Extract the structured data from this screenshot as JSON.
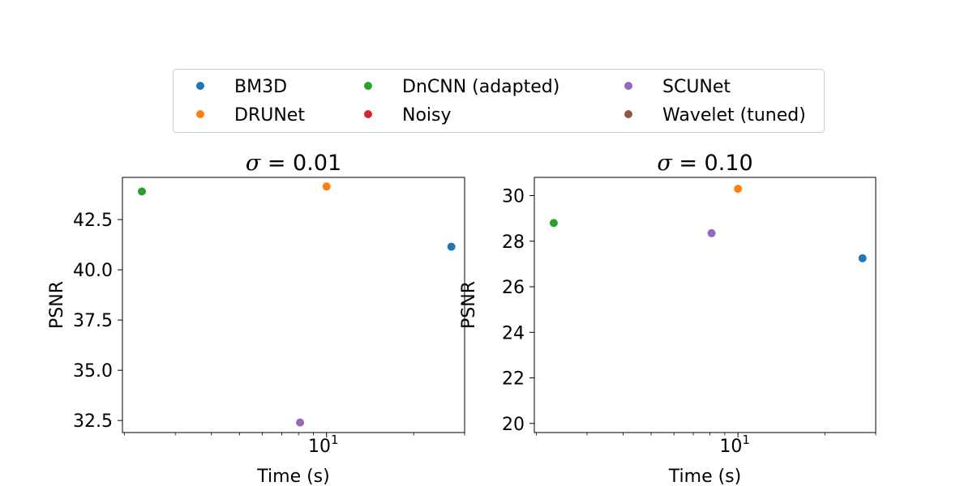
{
  "legend": {
    "placement": "top-center",
    "entries": [
      {
        "name": "BM3D",
        "color": "#1f77b4"
      },
      {
        "name": "DRUNet",
        "color": "#ff7f0e"
      },
      {
        "name": "DnCNN (adapted)",
        "color": "#2ca02c"
      },
      {
        "name": "Noisy",
        "color": "#d62728"
      },
      {
        "name": "SCUNet",
        "color": "#9467bd"
      },
      {
        "name": "Wavelet (tuned)",
        "color": "#8c564b"
      }
    ]
  },
  "chart_data": [
    {
      "type": "scatter",
      "title": "σ = 0.01",
      "title_symbol": "σ",
      "title_value": " = 0.01",
      "xlabel": "Time (s)",
      "ylabel": "PSNR",
      "xscale": "log",
      "xlim": [
        1.97,
        30.0
      ],
      "ylim": [
        31.9,
        44.6
      ],
      "xticks": [
        {
          "value": 10,
          "base": "10",
          "exp": "1"
        }
      ],
      "yticks": [
        32.5,
        35.0,
        37.5,
        40.0,
        42.5
      ],
      "ytick_labels": [
        "32.5",
        "35.0",
        "37.5",
        "40.0",
        "42.5"
      ],
      "points": [
        {
          "series": "BM3D",
          "x": 27.0,
          "y": 41.15
        },
        {
          "series": "DRUNet",
          "x": 10.0,
          "y": 44.15
        },
        {
          "series": "DnCNN (adapted)",
          "x": 2.3,
          "y": 43.9
        },
        {
          "series": "SCUNet",
          "x": 8.1,
          "y": 32.4
        }
      ]
    },
    {
      "type": "scatter",
      "title": "σ = 0.10",
      "title_symbol": "σ",
      "title_value": " = 0.10",
      "xlabel": "Time (s)",
      "ylabel": "PSNR",
      "xscale": "log",
      "xlim": [
        1.97,
        30.0
      ],
      "ylim": [
        19.6,
        30.8
      ],
      "xticks": [
        {
          "value": 10,
          "base": "10",
          "exp": "1"
        }
      ],
      "yticks": [
        20,
        22,
        24,
        26,
        28,
        30
      ],
      "ytick_labels": [
        "20",
        "22",
        "24",
        "26",
        "28",
        "30"
      ],
      "points": [
        {
          "series": "BM3D",
          "x": 27.0,
          "y": 27.25
        },
        {
          "series": "DRUNet",
          "x": 10.0,
          "y": 30.3
        },
        {
          "series": "DnCNN (adapted)",
          "x": 2.3,
          "y": 28.8
        },
        {
          "series": "SCUNet",
          "x": 8.1,
          "y": 28.35
        }
      ]
    }
  ]
}
